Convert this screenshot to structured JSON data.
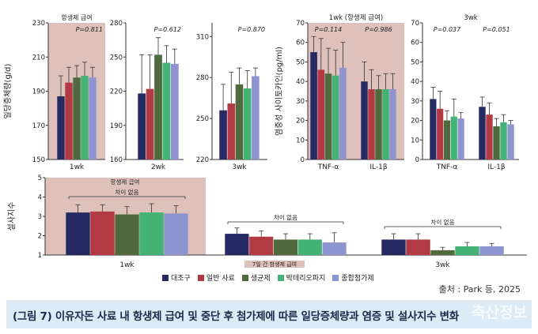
{
  "colors": [
    "#252a63",
    "#b23a45",
    "#4f6b3d",
    "#43b274",
    "#8e94d0"
  ],
  "shade_color": "#dfc1bb",
  "legend": [
    "대조구",
    "일반 사료",
    "생균제",
    "박테리오파지",
    "종합첨가제"
  ],
  "source": "출처 : Park 등, 2025",
  "caption": "(그림 7) 이유자돈 사료 내 항생제 급여 및 중단 후 첨가제에 따른 일당증체량과 염증 및 설사지수 변화",
  "watermark": "축산정보",
  "chart_data": [
    {
      "id": "adg-1wk",
      "type": "bar",
      "ylabel": "일당증체량(g/d)",
      "ylim": [
        150,
        230
      ],
      "yticks": [
        150,
        170,
        190,
        210,
        230
      ],
      "categories": [
        "1wk"
      ],
      "shaded": true,
      "shade_label": "항생제 급여",
      "pvalue": "P=0.811",
      "series": [
        {
          "name": "대조구",
          "values": [
            187
          ],
          "err": [
            12
          ]
        },
        {
          "name": "일반 사료",
          "values": [
            195
          ],
          "err": [
            9
          ]
        },
        {
          "name": "생균제",
          "values": [
            198
          ],
          "err": [
            7
          ]
        },
        {
          "name": "박테리오파지",
          "values": [
            199
          ],
          "err": [
            8
          ]
        },
        {
          "name": "종합첨가제",
          "values": [
            198
          ],
          "err": [
            6
          ]
        }
      ]
    },
    {
      "id": "adg-2wk",
      "type": "bar",
      "ylim": [
        160,
        280
      ],
      "yticks": [
        160,
        190,
        220,
        250,
        280
      ],
      "categories": [
        "2wk"
      ],
      "pvalue": "P=0.612",
      "series": [
        {
          "name": "대조구",
          "values": [
            218
          ],
          "err": [
            34
          ]
        },
        {
          "name": "일반 사료",
          "values": [
            222
          ],
          "err": [
            30
          ]
        },
        {
          "name": "생균제",
          "values": [
            252
          ],
          "err": [
            15
          ]
        },
        {
          "name": "박테리오파지",
          "values": [
            245
          ],
          "err": [
            15
          ]
        },
        {
          "name": "종합첨가제",
          "values": [
            244
          ],
          "err": [
            13
          ]
        }
      ]
    },
    {
      "id": "adg-3wk",
      "type": "bar",
      "ylim": [
        220,
        320
      ],
      "yticks": [
        220,
        250,
        280,
        310
      ],
      "categories": [
        "3wk"
      ],
      "pvalue": "P=0.870",
      "series": [
        {
          "name": "대조구",
          "values": [
            256
          ],
          "err": [
            19
          ]
        },
        {
          "name": "일반 사료",
          "values": [
            261
          ],
          "err": [
            23
          ]
        },
        {
          "name": "생균제",
          "values": [
            275
          ],
          "err": [
            12
          ]
        },
        {
          "name": "박테리오파지",
          "values": [
            272
          ],
          "err": [
            13
          ]
        },
        {
          "name": "종합첨가제",
          "values": [
            281
          ],
          "err": [
            6
          ]
        }
      ]
    },
    {
      "id": "cyto-1wk",
      "type": "bar",
      "ylabel": "염증성 사이토카인(pg/ml)",
      "ylim": [
        0,
        70
      ],
      "yticks": [
        0,
        10,
        20,
        30,
        40,
        50,
        60,
        70
      ],
      "title": "1wk (항생제 급여)",
      "shaded": true,
      "categories": [
        "TNF-α",
        "IL-1β"
      ],
      "pvalues": [
        "P=0.114",
        "P=0.986"
      ],
      "series": [
        {
          "name": "대조구",
          "values": [
            55,
            40
          ],
          "err": [
            8,
            10
          ]
        },
        {
          "name": "일반 사료",
          "values": [
            46,
            36
          ],
          "err": [
            16,
            10
          ]
        },
        {
          "name": "생균제",
          "values": [
            44,
            36
          ],
          "err": [
            13,
            7
          ]
        },
        {
          "name": "박테리오파지",
          "values": [
            43,
            36
          ],
          "err": [
            13,
            8
          ]
        },
        {
          "name": "종합첨가제",
          "values": [
            47,
            36
          ],
          "err": [
            13,
            8
          ]
        }
      ]
    },
    {
      "id": "cyto-3wk",
      "type": "bar",
      "ylim": [
        0,
        70
      ],
      "yticks": [
        0,
        10,
        20,
        30,
        40,
        50,
        60,
        70
      ],
      "title": "3wk",
      "categories": [
        "TNF-α",
        "IL-1β"
      ],
      "pvalues": [
        "P=0.037",
        "P=0.051"
      ],
      "series": [
        {
          "name": "대조구",
          "values": [
            31,
            27
          ],
          "err": [
            6,
            5
          ]
        },
        {
          "name": "일반 사료",
          "values": [
            26,
            23
          ],
          "err": [
            9,
            6
          ]
        },
        {
          "name": "생균제",
          "values": [
            20,
            17
          ],
          "err": [
            5,
            4
          ]
        },
        {
          "name": "박테리오파지",
          "values": [
            22,
            19
          ],
          "err": [
            9,
            4
          ]
        },
        {
          "name": "종합첨가제",
          "values": [
            21,
            18
          ],
          "err": [
            3,
            2
          ]
        }
      ]
    },
    {
      "id": "diarrhea",
      "type": "bar",
      "ylabel": "설사지수",
      "ylim": [
        1,
        5
      ],
      "yticks": [
        1,
        2,
        3,
        4,
        5
      ],
      "categories": [
        "1wk",
        "2wk",
        "3wk"
      ],
      "shaded_first": true,
      "shade_label": "항생제 급여",
      "group_notes": [
        "차이 없음",
        "차이 없음",
        "차이 없음"
      ],
      "period_note": "7일 간 항생제 급여",
      "series": [
        {
          "name": "대조구",
          "values": [
            3.2,
            2.1,
            1.8
          ],
          "err": [
            0.4,
            0.3,
            0.3
          ]
        },
        {
          "name": "일반 사료",
          "values": [
            3.25,
            1.95,
            1.8
          ],
          "err": [
            0.35,
            0.3,
            0.3
          ]
        },
        {
          "name": "생균제",
          "values": [
            3.1,
            1.8,
            1.25
          ],
          "err": [
            0.4,
            0.3,
            0.15
          ]
        },
        {
          "name": "박테리오파지",
          "values": [
            3.2,
            1.8,
            1.45
          ],
          "err": [
            0.45,
            0.3,
            0.2
          ]
        },
        {
          "name": "종합첨가제",
          "values": [
            3.15,
            1.65,
            1.45
          ],
          "err": [
            0.4,
            0.5,
            0.15
          ]
        }
      ]
    }
  ]
}
